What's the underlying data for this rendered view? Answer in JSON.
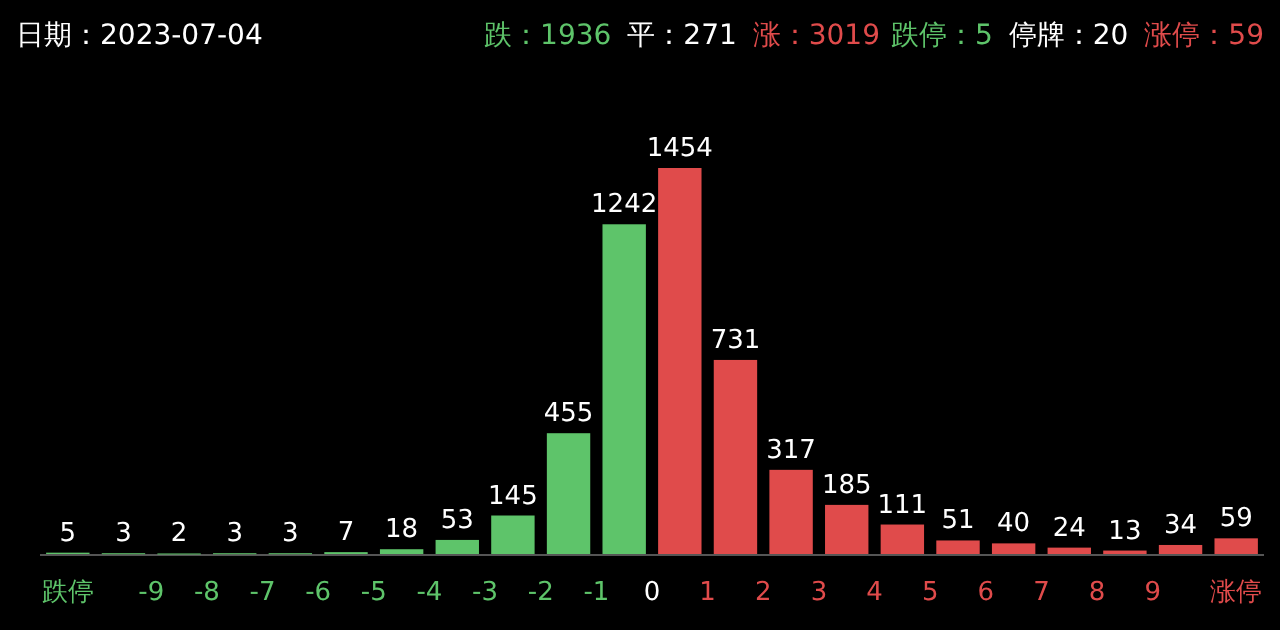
{
  "chart_data": {
    "type": "bar",
    "title": "日期：2023-07-04",
    "annotations": [
      "跌：1936",
      "平：271",
      "涨：3019",
      "跌停：5",
      "停牌：20",
      "涨停：59"
    ],
    "x": [
      -10.5,
      -9.5,
      -8.5,
      -7.5,
      -6.5,
      -5.5,
      -4.5,
      -3.5,
      -2.5,
      -1.5,
      -0.5,
      0.5,
      1.5,
      2.5,
      3.5,
      4.5,
      5.5,
      6.5,
      7.5,
      8.5,
      9.5,
      10.5
    ],
    "values": [
      5,
      3,
      2,
      3,
      3,
      7,
      18,
      53,
      145,
      455,
      1242,
      1454,
      731,
      317,
      185,
      111,
      51,
      40,
      24,
      13,
      34,
      59
    ],
    "colors": [
      "#5ec46a",
      "#5ec46a",
      "#5ec46a",
      "#5ec46a",
      "#5ec46a",
      "#5ec46a",
      "#5ec46a",
      "#5ec46a",
      "#5ec46a",
      "#5ec46a",
      "#5ec46a",
      "#e04b4b",
      "#e04b4b",
      "#e04b4b",
      "#e04b4b",
      "#e04b4b",
      "#e04b4b",
      "#e04b4b",
      "#e04b4b",
      "#e04b4b",
      "#e04b4b",
      "#e04b4b"
    ],
    "xlim": [
      -11,
      11
    ],
    "xticks": [
      {
        "value": -10.5,
        "label": "跌停"
      },
      -9,
      -8,
      -7,
      -6,
      -5,
      -4,
      -3,
      -2,
      -1,
      0,
      1,
      2,
      3,
      4,
      5,
      6,
      7,
      8,
      9,
      {
        "value": 10.5,
        "label": "涨停"
      }
    ],
    "data_labels": true
  }
}
